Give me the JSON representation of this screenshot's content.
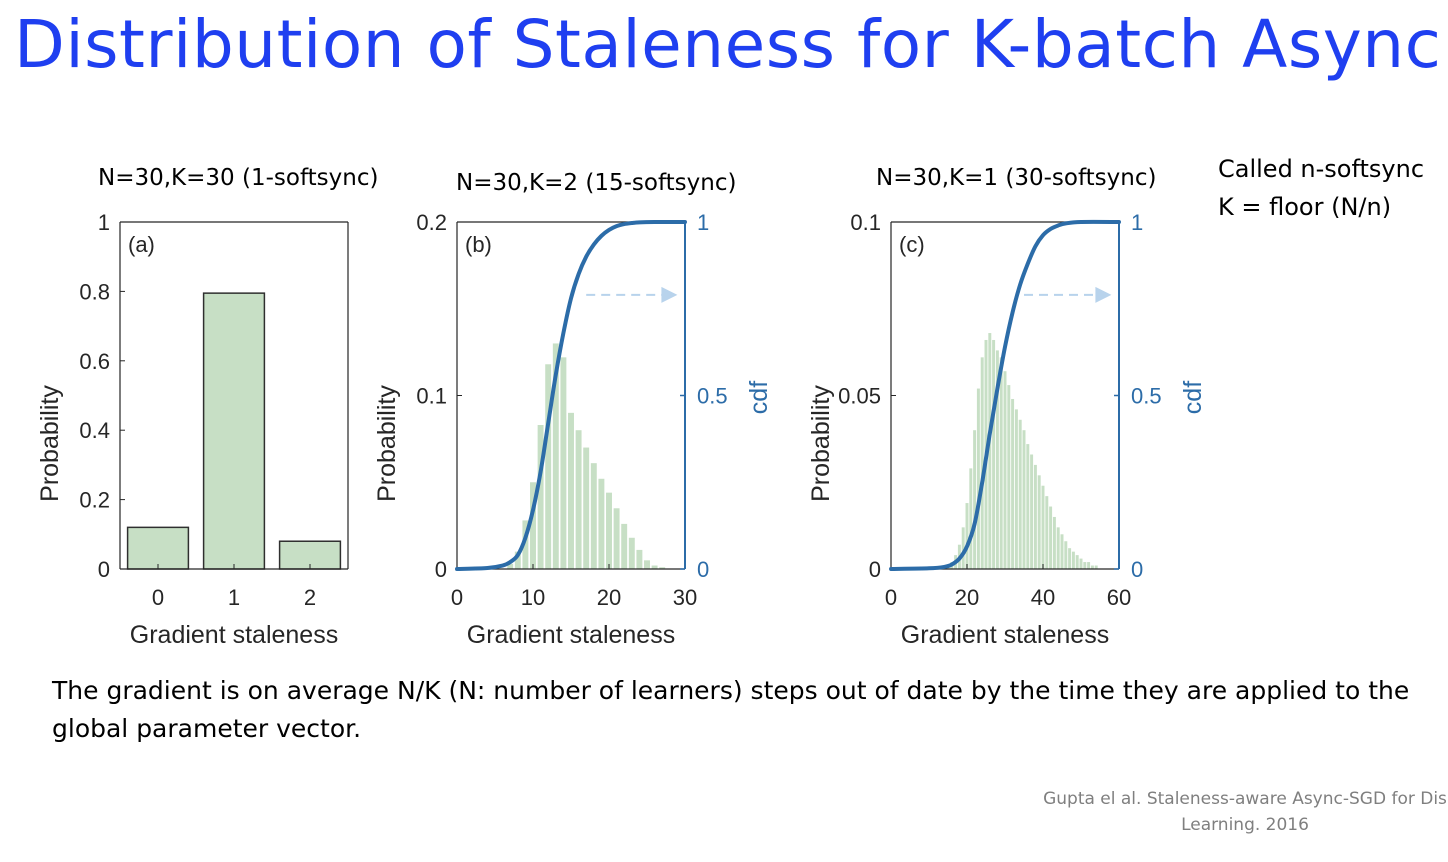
{
  "slide": {
    "title": "Distribution of Staleness for K-batch Async",
    "side_note": [
      "Called n-softsync",
      "K = floor (N/n)"
    ],
    "body_text": "The gradient is on average N/K (N: number of learners) steps out of date by the time they are applied to the global parameter vector.",
    "citation": [
      "Gupta el al. Staleness-aware Async-SGD for Dis",
      "Learning. 2016"
    ]
  },
  "colors": {
    "title": "#1f3ff0",
    "bar_fill": "#c7dfc5",
    "bar_stroke": "#2f2f2f",
    "cdf": "#2c6ca8",
    "mean_arrow": "#b8d3ec"
  },
  "chart_data": [
    {
      "type": "bar",
      "title": "N=30,K=30 (1-softsync)",
      "panel_label": "(a)",
      "categories": [
        "0",
        "1",
        "2"
      ],
      "values": [
        0.12,
        0.795,
        0.08
      ],
      "xlabel": "Gradient staleness",
      "ylabel": "Probability",
      "ylim": [
        0,
        1
      ],
      "yticks": [
        "0",
        "0.2",
        "0.4",
        "0.6",
        "0.8",
        "1"
      ],
      "grid": false
    },
    {
      "type": "bar",
      "title": "N=30,K=2 (15-softsync)",
      "panel_label": "(b)",
      "x": [
        7,
        8,
        9,
        10,
        11,
        12,
        13,
        14,
        15,
        16,
        17,
        18,
        19,
        20,
        21,
        22,
        23,
        24,
        25,
        26,
        27
      ],
      "values": [
        0.003,
        0.01,
        0.028,
        0.05,
        0.083,
        0.118,
        0.13,
        0.122,
        0.09,
        0.08,
        0.07,
        0.061,
        0.052,
        0.044,
        0.035,
        0.026,
        0.018,
        0.011,
        0.005,
        0.002,
        0.001
      ],
      "xlabel": "Gradient staleness",
      "ylabel": "Probability",
      "xlim": [
        0,
        30
      ],
      "ylim": [
        0,
        0.2
      ],
      "xticks": [
        "0",
        "10",
        "20",
        "30"
      ],
      "yticks": [
        "0",
        "0.1",
        "0.2"
      ],
      "secondary_axis": {
        "label": "cdf",
        "ylim": [
          0,
          1
        ],
        "ticks": [
          "0",
          "0.5",
          "1"
        ]
      },
      "cdf": {
        "x": [
          0,
          4,
          6,
          7,
          8,
          9,
          10,
          11,
          12,
          13,
          14,
          15,
          16,
          17,
          18,
          19,
          20,
          21,
          22,
          23,
          24,
          26,
          30
        ],
        "y": [
          0,
          0.003,
          0.01,
          0.02,
          0.04,
          0.09,
          0.17,
          0.28,
          0.42,
          0.56,
          0.68,
          0.78,
          0.85,
          0.9,
          0.935,
          0.96,
          0.977,
          0.988,
          0.994,
          0.997,
          0.999,
          1.0,
          1.0
        ]
      },
      "mean_arrow": {
        "x_from": 17,
        "x_to": 29,
        "y": 0.79
      },
      "grid": false
    },
    {
      "type": "bar",
      "title": "N=30,K=1 (30-softsync)",
      "panel_label": "(c)",
      "x": [
        15,
        16,
        17,
        18,
        19,
        20,
        21,
        22,
        23,
        24,
        25,
        26,
        27,
        28,
        29,
        30,
        31,
        32,
        33,
        34,
        35,
        36,
        37,
        38,
        39,
        40,
        41,
        42,
        43,
        44,
        45,
        46,
        47,
        48,
        49,
        50,
        51,
        52,
        53,
        54
      ],
      "values": [
        0.001,
        0.002,
        0.004,
        0.007,
        0.012,
        0.019,
        0.029,
        0.04,
        0.052,
        0.061,
        0.066,
        0.068,
        0.066,
        0.063,
        0.061,
        0.057,
        0.053,
        0.049,
        0.046,
        0.043,
        0.04,
        0.036,
        0.033,
        0.03,
        0.027,
        0.024,
        0.021,
        0.018,
        0.015,
        0.012,
        0.01,
        0.008,
        0.006,
        0.005,
        0.004,
        0.003,
        0.002,
        0.002,
        0.001,
        0.001
      ],
      "xlabel": "Gradient staleness",
      "ylabel": "Probability",
      "xlim": [
        0,
        60
      ],
      "ylim": [
        0,
        0.1
      ],
      "xticks": [
        "0",
        "20",
        "40",
        "60"
      ],
      "yticks": [
        "0",
        "0.05",
        "0.1"
      ],
      "secondary_axis": {
        "label": "cdf",
        "ylim": [
          0,
          1
        ],
        "ticks": [
          "0",
          "0.5",
          "1"
        ]
      },
      "cdf": {
        "x": [
          0,
          10,
          14,
          16,
          18,
          20,
          22,
          24,
          26,
          28,
          30,
          32,
          34,
          36,
          38,
          40,
          42,
          44,
          46,
          50,
          60
        ],
        "y": [
          0,
          0.002,
          0.006,
          0.013,
          0.03,
          0.065,
          0.13,
          0.25,
          0.39,
          0.52,
          0.64,
          0.74,
          0.82,
          0.88,
          0.93,
          0.962,
          0.98,
          0.99,
          0.996,
          1.0,
          1.0
        ]
      },
      "mean_arrow": {
        "x_from": 35,
        "x_to": 58,
        "y": 0.79
      },
      "grid": false
    }
  ]
}
